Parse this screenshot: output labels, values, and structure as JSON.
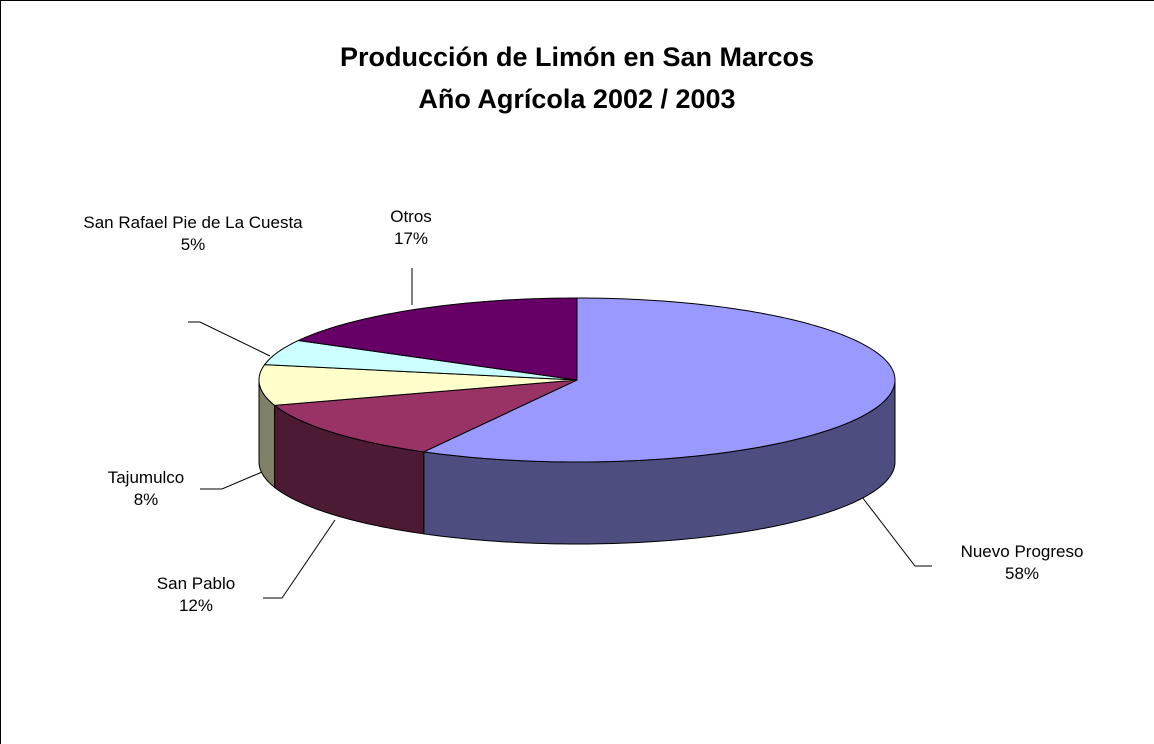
{
  "chart_data": {
    "type": "pie",
    "title": "Producción de Limón en San Marcos",
    "subtitle": "Año Agrícola 2002 / 2003",
    "categories": [
      "Nuevo Progreso",
      "San Pablo",
      "Tajumulco",
      "San Rafael Pie de La Cuesta",
      "Otros"
    ],
    "values": [
      58,
      12,
      8,
      5,
      17
    ],
    "value_labels": [
      "58%",
      "12%",
      "8%",
      "5%",
      "17%"
    ],
    "colors": [
      "#9999ff",
      "#993366",
      "#ffffcc",
      "#ccffff",
      "#660066"
    ]
  }
}
